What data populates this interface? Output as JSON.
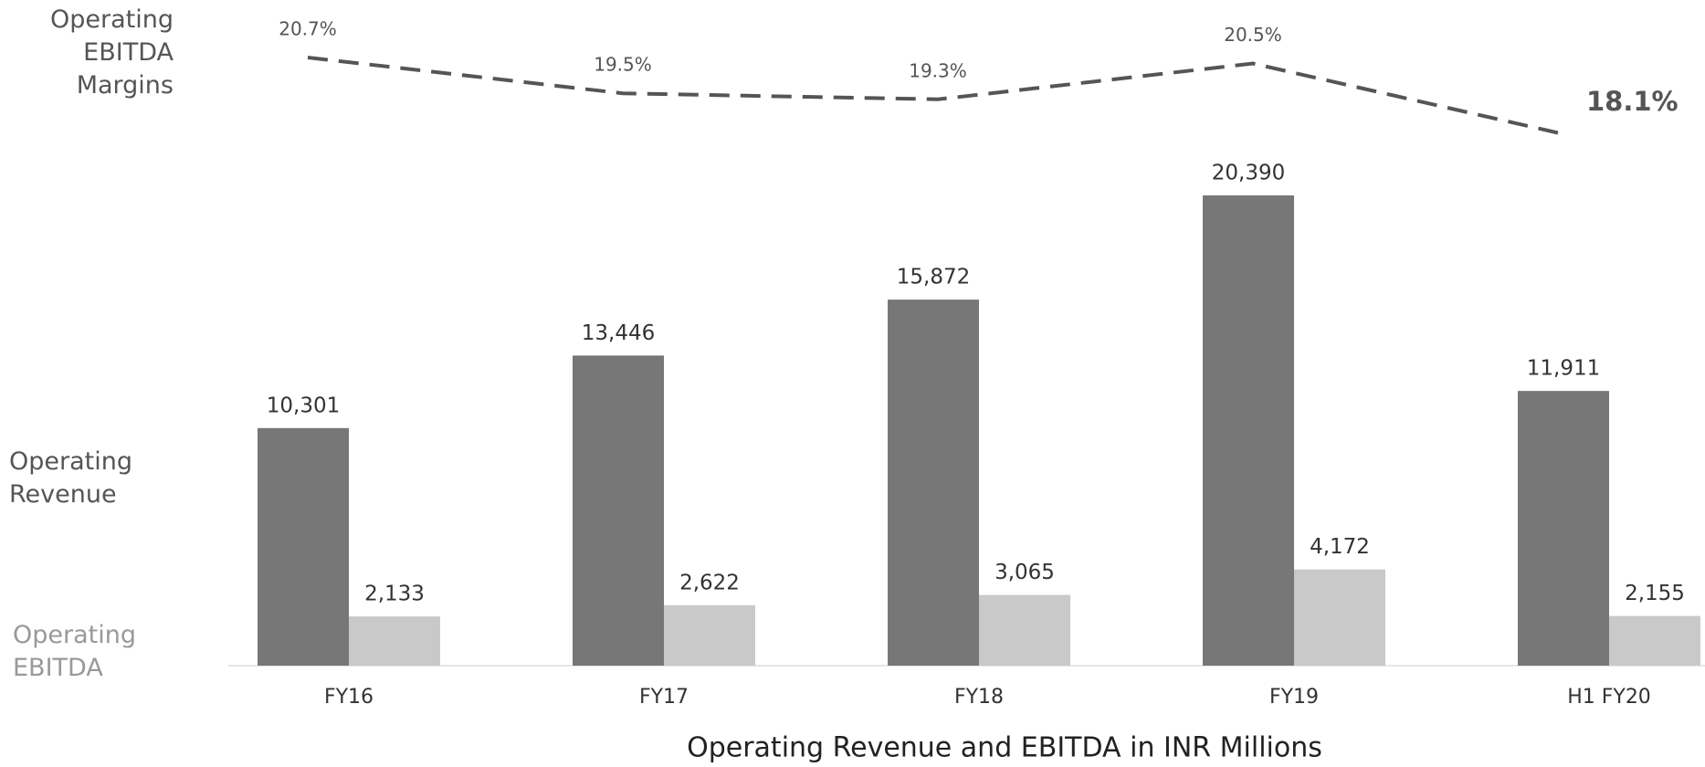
{
  "chart_data": {
    "type": "bar",
    "title": "Operating Revenue and EBITDA in INR Millions",
    "categories": [
      "FY16",
      "FY17",
      "FY18",
      "FY19",
      "H1 FY20"
    ],
    "series": [
      {
        "name": "Operating Revenue",
        "color": "#777777",
        "values": [
          10301,
          13446,
          15872,
          20390,
          11911
        ],
        "value_labels": [
          "10,301",
          "13,446",
          "15,872",
          "20,390",
          "11,911"
        ]
      },
      {
        "name": "Operating EBITDA",
        "color": "#c9c9c9",
        "values": [
          2133,
          2622,
          3065,
          4172,
          2155
        ],
        "value_labels": [
          "2,133",
          "2,622",
          "3,065",
          "4,172",
          "2,155"
        ]
      }
    ],
    "line": {
      "name": "Operating EBITDA Margins",
      "color": "#555555",
      "values": [
        20.7,
        19.5,
        19.3,
        20.5,
        18.1
      ],
      "value_labels": [
        "20.7%",
        "19.5%",
        "19.3%",
        "20.5%",
        "18.1%"
      ]
    }
  }
}
